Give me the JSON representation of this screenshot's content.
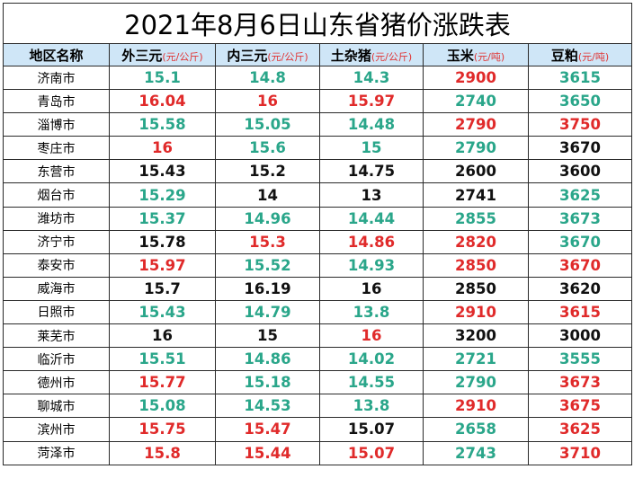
{
  "title": "2021年8月6日山东省猪价涨跌表",
  "colors": {
    "up": "#e02a2a",
    "down": "#2aa68a",
    "flat": "#111111",
    "header_bg": "#cfe6f7"
  },
  "headers": [
    {
      "label": "地区名称",
      "unit": ""
    },
    {
      "label": "外三元",
      "unit": "(元/公斤)"
    },
    {
      "label": "内三元",
      "unit": "(元/公斤)"
    },
    {
      "label": "土杂猪",
      "unit": "(元/公斤)"
    },
    {
      "label": "玉米",
      "unit": "(元/吨)"
    },
    {
      "label": "豆粕",
      "unit": "(元/吨)"
    }
  ],
  "rows": [
    {
      "region": "济南市",
      "cells": [
        {
          "v": "15.1",
          "t": "down"
        },
        {
          "v": "14.8",
          "t": "down"
        },
        {
          "v": "14.3",
          "t": "down"
        },
        {
          "v": "2900",
          "t": "up"
        },
        {
          "v": "3615",
          "t": "down"
        }
      ]
    },
    {
      "region": "青岛市",
      "cells": [
        {
          "v": "16.04",
          "t": "up"
        },
        {
          "v": "16",
          "t": "up"
        },
        {
          "v": "15.97",
          "t": "up"
        },
        {
          "v": "2740",
          "t": "down"
        },
        {
          "v": "3650",
          "t": "down"
        }
      ]
    },
    {
      "region": "淄博市",
      "cells": [
        {
          "v": "15.58",
          "t": "down"
        },
        {
          "v": "15.05",
          "t": "down"
        },
        {
          "v": "14.48",
          "t": "down"
        },
        {
          "v": "2790",
          "t": "up"
        },
        {
          "v": "3750",
          "t": "up"
        }
      ]
    },
    {
      "region": "枣庄市",
      "cells": [
        {
          "v": "16",
          "t": "up"
        },
        {
          "v": "15.6",
          "t": "down"
        },
        {
          "v": "15",
          "t": "down"
        },
        {
          "v": "2790",
          "t": "down"
        },
        {
          "v": "3670",
          "t": "flat"
        }
      ]
    },
    {
      "region": "东营市",
      "cells": [
        {
          "v": "15.43",
          "t": "flat"
        },
        {
          "v": "15.2",
          "t": "flat"
        },
        {
          "v": "14.75",
          "t": "flat"
        },
        {
          "v": "2600",
          "t": "flat"
        },
        {
          "v": "3600",
          "t": "flat"
        }
      ]
    },
    {
      "region": "烟台市",
      "cells": [
        {
          "v": "15.29",
          "t": "down"
        },
        {
          "v": "14",
          "t": "flat"
        },
        {
          "v": "13",
          "t": "flat"
        },
        {
          "v": "2741",
          "t": "flat"
        },
        {
          "v": "3625",
          "t": "down"
        }
      ]
    },
    {
      "region": "潍坊市",
      "cells": [
        {
          "v": "15.37",
          "t": "down"
        },
        {
          "v": "14.96",
          "t": "down"
        },
        {
          "v": "14.44",
          "t": "down"
        },
        {
          "v": "2855",
          "t": "down"
        },
        {
          "v": "3673",
          "t": "down"
        }
      ]
    },
    {
      "region": "济宁市",
      "cells": [
        {
          "v": "15.78",
          "t": "flat"
        },
        {
          "v": "15.3",
          "t": "up"
        },
        {
          "v": "14.86",
          "t": "up"
        },
        {
          "v": "2820",
          "t": "up"
        },
        {
          "v": "3670",
          "t": "down"
        }
      ]
    },
    {
      "region": "泰安市",
      "cells": [
        {
          "v": "15.97",
          "t": "up"
        },
        {
          "v": "15.52",
          "t": "down"
        },
        {
          "v": "14.93",
          "t": "down"
        },
        {
          "v": "2850",
          "t": "up"
        },
        {
          "v": "3670",
          "t": "up"
        }
      ]
    },
    {
      "region": "威海市",
      "cells": [
        {
          "v": "15.7",
          "t": "flat"
        },
        {
          "v": "16.19",
          "t": "flat"
        },
        {
          "v": "16",
          "t": "flat"
        },
        {
          "v": "2850",
          "t": "flat"
        },
        {
          "v": "3620",
          "t": "flat"
        }
      ]
    },
    {
      "region": "日照市",
      "cells": [
        {
          "v": "15.43",
          "t": "down"
        },
        {
          "v": "14.79",
          "t": "down"
        },
        {
          "v": "13.8",
          "t": "down"
        },
        {
          "v": "2910",
          "t": "up"
        },
        {
          "v": "3615",
          "t": "up"
        }
      ]
    },
    {
      "region": "莱芜市",
      "cells": [
        {
          "v": "16",
          "t": "flat"
        },
        {
          "v": "15",
          "t": "flat"
        },
        {
          "v": "16",
          "t": "up"
        },
        {
          "v": "3200",
          "t": "flat"
        },
        {
          "v": "3000",
          "t": "flat"
        }
      ]
    },
    {
      "region": "临沂市",
      "cells": [
        {
          "v": "15.51",
          "t": "down"
        },
        {
          "v": "14.86",
          "t": "down"
        },
        {
          "v": "14.02",
          "t": "down"
        },
        {
          "v": "2721",
          "t": "down"
        },
        {
          "v": "3555",
          "t": "down"
        }
      ]
    },
    {
      "region": "德州市",
      "cells": [
        {
          "v": "15.77",
          "t": "up"
        },
        {
          "v": "15.18",
          "t": "down"
        },
        {
          "v": "14.55",
          "t": "down"
        },
        {
          "v": "2790",
          "t": "down"
        },
        {
          "v": "3673",
          "t": "up"
        }
      ]
    },
    {
      "region": "聊城市",
      "cells": [
        {
          "v": "15.08",
          "t": "down"
        },
        {
          "v": "14.53",
          "t": "down"
        },
        {
          "v": "13.8",
          "t": "down"
        },
        {
          "v": "2910",
          "t": "up"
        },
        {
          "v": "3675",
          "t": "up"
        }
      ]
    },
    {
      "region": "滨州市",
      "cells": [
        {
          "v": "15.75",
          "t": "up"
        },
        {
          "v": "15.47",
          "t": "up"
        },
        {
          "v": "15.07",
          "t": "flat"
        },
        {
          "v": "2658",
          "t": "down"
        },
        {
          "v": "3625",
          "t": "up"
        }
      ]
    },
    {
      "region": "菏泽市",
      "cells": [
        {
          "v": "15.8",
          "t": "up"
        },
        {
          "v": "15.44",
          "t": "up"
        },
        {
          "v": "15.07",
          "t": "up"
        },
        {
          "v": "2743",
          "t": "down"
        },
        {
          "v": "3710",
          "t": "up"
        }
      ]
    }
  ]
}
